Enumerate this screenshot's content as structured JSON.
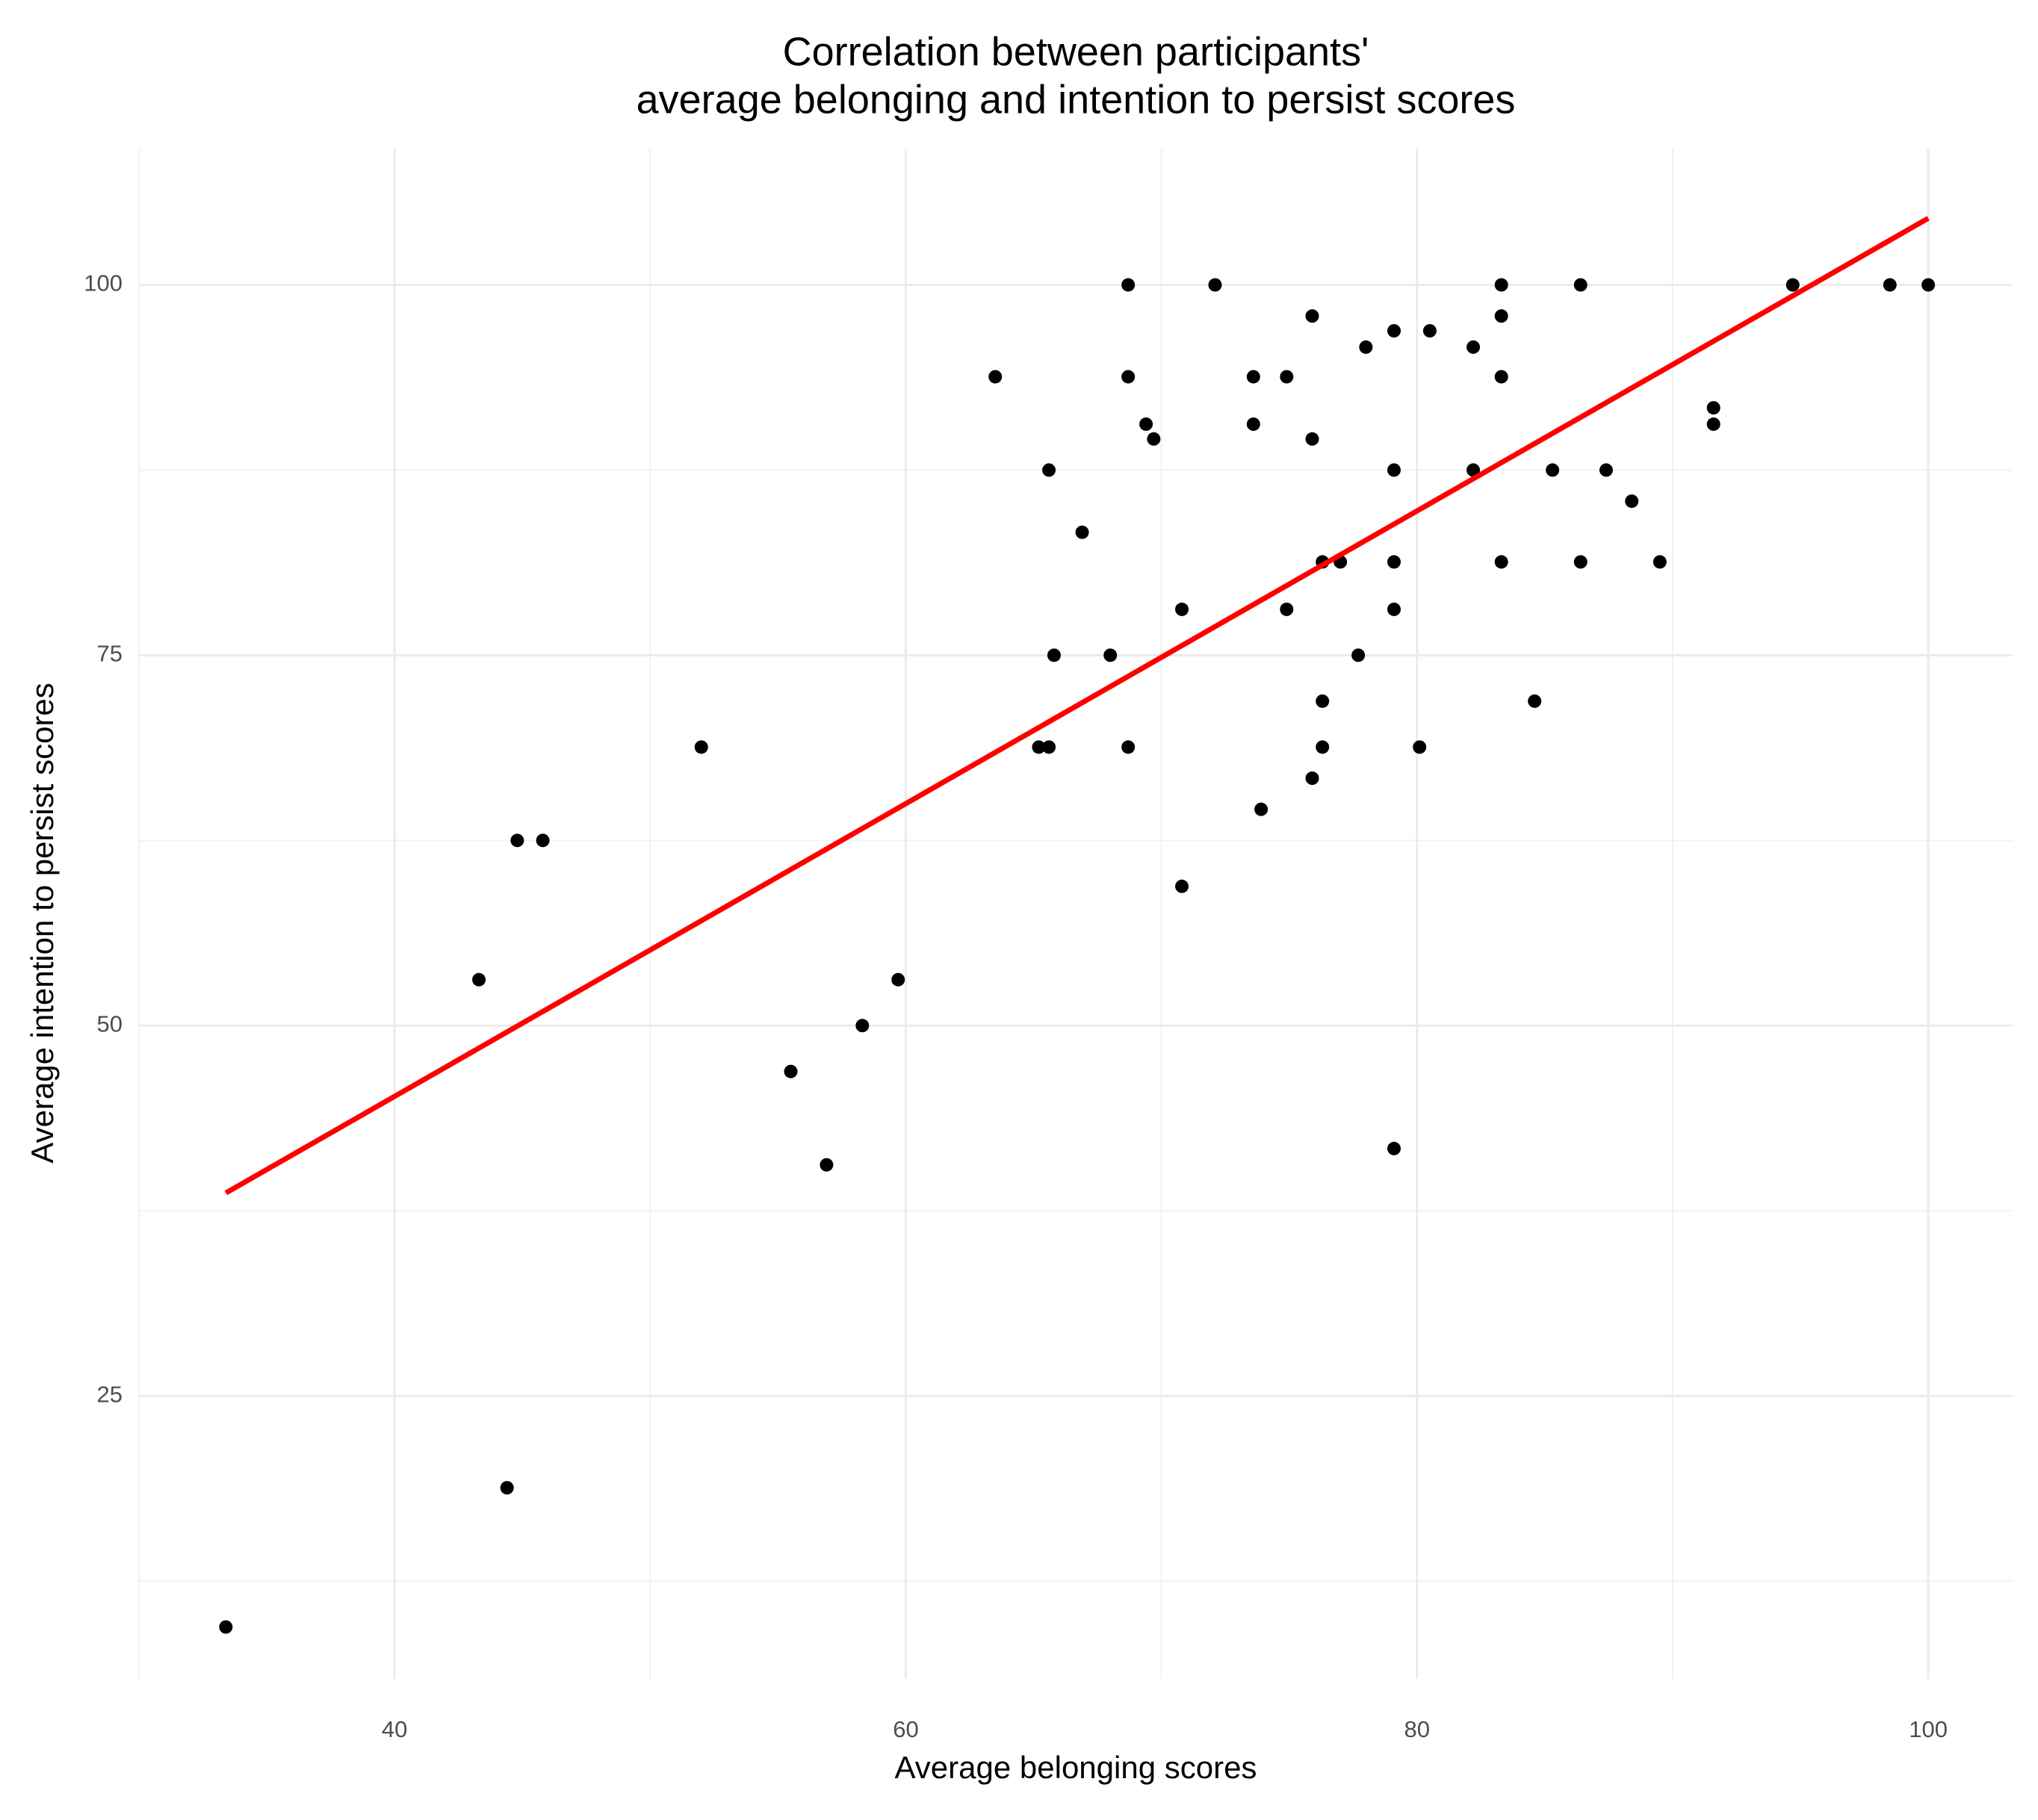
{
  "chart_data": {
    "type": "scatter",
    "title": [
      "Correlation between participants'",
      "average belonging and intention to persist scores"
    ],
    "x_label": "Average belonging scores",
    "y_label": "Average intention to persist scores",
    "xlim": [
      30.0,
      103.3
    ],
    "ylim": [
      5.9,
      109.2
    ],
    "xticks": [
      40,
      60,
      80,
      100
    ],
    "yticks": [
      25,
      50,
      75,
      100
    ],
    "xminor": [
      30,
      50,
      70,
      90
    ],
    "yminor": [
      12.5,
      37.5,
      62.5,
      87.5
    ],
    "grid": true,
    "color": "#000000",
    "x": [
      33.4,
      44.4,
      43.3,
      44.8,
      45.8,
      52.0,
      55.5,
      56.9,
      58.3,
      59.7,
      63.5,
      65.2,
      65.6,
      65.6,
      65.8,
      66.9,
      68.0,
      68.7,
      68.7,
      68.7,
      69.4,
      69.7,
      70.8,
      70.8,
      72.1,
      73.6,
      73.6,
      73.9,
      74.9,
      74.9,
      75.9,
      75.9,
      75.9,
      76.3,
      76.3,
      76.3,
      77.0,
      77.7,
      78.0,
      79.1,
      79.1,
      79.1,
      79.1,
      79.1,
      80.1,
      80.5,
      82.2,
      82.2,
      83.3,
      83.3,
      83.3,
      83.3,
      84.6,
      85.3,
      86.4,
      86.4,
      87.4,
      88.4,
      89.5,
      91.6,
      91.6,
      94.7,
      98.5,
      100
    ],
    "values": [
      9.4,
      18.8,
      53.1,
      62.5,
      62.5,
      68.8,
      46.9,
      40.6,
      50,
      53.1,
      93.8,
      68.8,
      68.8,
      87.5,
      75,
      83.3,
      75,
      100,
      93.8,
      68.8,
      90.6,
      89.6,
      78.1,
      59.4,
      100,
      93.8,
      90.6,
      64.6,
      93.8,
      78.1,
      97.9,
      89.6,
      66.7,
      81.3,
      71.9,
      68.8,
      81.3,
      75,
      95.8,
      96.9,
      87.5,
      81.3,
      78.1,
      41.7,
      68.8,
      96.9,
      95.8,
      87.5,
      100,
      97.9,
      93.8,
      81.3,
      71.9,
      87.5,
      100,
      81.3,
      87.5,
      85.4,
      81.3,
      91.7,
      90.6,
      100,
      100,
      100
    ],
    "fit": {
      "color": "#ff0000",
      "x": [
        33.4,
        100
      ],
      "y": [
        38.7,
        104.5
      ]
    }
  }
}
